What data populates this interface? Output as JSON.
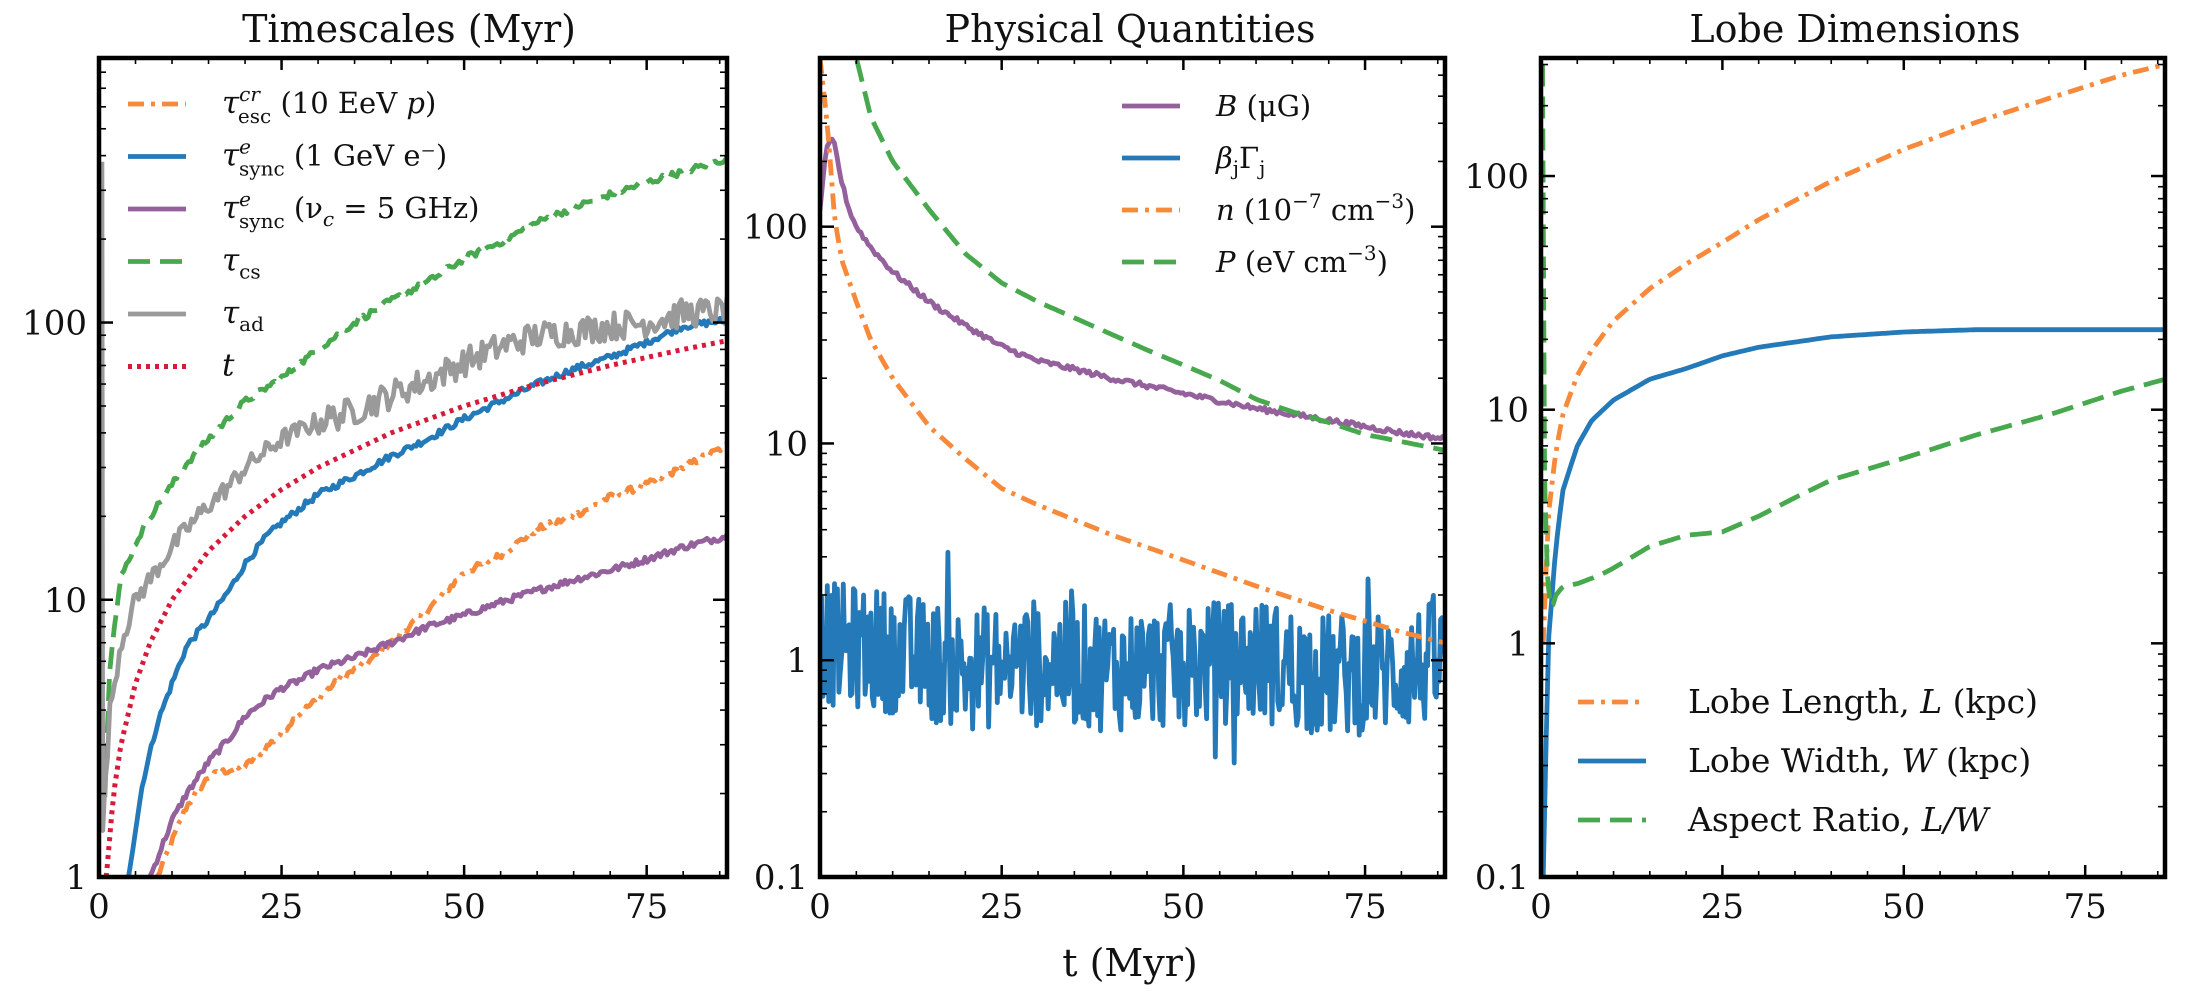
{
  "figure": {
    "xlabel": "t (Myr)"
  },
  "chart_data": [
    {
      "type": "line",
      "title": "Timescales (Myr)",
      "yscale": "log",
      "xlim": [
        0,
        86
      ],
      "ylim": [
        1,
        900
      ],
      "xticks": [
        0,
        25,
        50,
        75
      ],
      "xtick_labels": [
        "0",
        "25",
        "50",
        "75"
      ],
      "yticks": [
        1,
        10,
        100
      ],
      "ytick_labels": [
        "1",
        "10",
        "100"
      ],
      "legend_position": "top-left",
      "series": [
        {
          "name": "τ_esc^cr (10 EeV p)",
          "label_main": "τ",
          "label_sup": "cr",
          "label_sub": "esc",
          "label_rest": " (10 EeV ",
          "label_end_italic": "p",
          "label_end": ")",
          "color": "#f7893b",
          "dash": "dashdot",
          "noisy": true,
          "x": [
            8,
            10,
            12,
            15,
            17,
            20,
            22,
            25,
            27,
            30,
            33,
            37,
            40,
            45,
            50,
            55,
            60,
            65,
            70,
            75,
            80,
            86
          ],
          "y": [
            1.0,
            1.35,
            1.8,
            2.3,
            2.4,
            2.5,
            2.8,
            3.3,
            3.8,
            4.4,
            5.2,
            6.0,
            7.0,
            9.2,
            12.5,
            14.5,
            18.0,
            20.0,
            23.5,
            26.0,
            30.0,
            36.0
          ]
        },
        {
          "name": "τ_sync^e (1 GeV e⁻)",
          "label_main": "τ",
          "label_sup": "e",
          "label_sub": "sync",
          "label_rest": " (1 GeV e",
          "label_end_italic": "",
          "label_end": "⁻)",
          "color": "#2479b8",
          "dash": "solid",
          "noisy": true,
          "x": [
            4,
            6,
            8,
            10,
            12,
            15,
            18,
            20,
            23,
            25,
            30,
            35,
            40,
            45,
            50,
            55,
            60,
            65,
            70,
            75,
            80,
            86
          ],
          "y": [
            1.0,
            2.2,
            3.6,
            5.0,
            6.8,
            8.5,
            11.0,
            13.5,
            17.0,
            19.0,
            24.0,
            28.0,
            33.0,
            38.0,
            45.0,
            52.0,
            60.0,
            68.0,
            75.0,
            85.0,
            97.0,
            102.0
          ]
        },
        {
          "name": "τ_sync^e (ν_c = 5 GHz)",
          "label_main": "τ",
          "label_sup": "e",
          "label_sub": "sync",
          "label_rest": " (ν",
          "label_end_italic": "c",
          "label_end": " = 5 GHz)",
          "color": "#94619c",
          "dash": "solid",
          "noisy": true,
          "x": [
            7,
            10,
            12,
            15,
            18,
            20,
            23,
            25,
            28,
            30,
            35,
            40,
            45,
            50,
            55,
            60,
            65,
            70,
            75,
            80,
            86
          ],
          "y": [
            1.0,
            1.6,
            2.0,
            2.6,
            3.2,
            3.8,
            4.4,
            4.8,
            5.2,
            5.6,
            6.2,
            7.0,
            8.0,
            8.8,
            9.8,
            10.8,
            11.8,
            12.8,
            14.0,
            15.5,
            17.0
          ]
        },
        {
          "name": "τ_cs",
          "label_main": "τ",
          "label_sup": "",
          "label_sub": "cs",
          "label_rest": "",
          "label_end_italic": "",
          "label_end": "",
          "color": "#47a84d",
          "dash": "dashed",
          "noisy": true,
          "x": [
            0.8,
            1.5,
            3,
            5,
            7,
            10,
            12,
            15,
            18,
            20,
            25,
            30,
            35,
            40,
            45,
            50,
            55,
            60,
            65,
            70,
            75,
            80,
            86
          ],
          "y": [
            2.0,
            6.0,
            12.0,
            16.0,
            20.0,
            26.0,
            31.0,
            38.0,
            46.0,
            52.0,
            63.0,
            80.0,
            100.0,
            120.0,
            140.0,
            170.0,
            195.0,
            230.0,
            260.0,
            290.0,
            320.0,
            350.0,
            390.0
          ]
        },
        {
          "name": "τ_ad",
          "label_main": "τ",
          "label_sup": "",
          "label_sub": "ad",
          "label_rest": "",
          "label_end_italic": "",
          "label_end": "",
          "color": "#9a9a9a",
          "dash": "solid",
          "noisy": true,
          "x": [
            0.4,
            0.5,
            1.0,
            1.5,
            3,
            5,
            8,
            10,
            12,
            15,
            18,
            20,
            25,
            30,
            35,
            40,
            45,
            50,
            55,
            60,
            65,
            70,
            75,
            80,
            86
          ],
          "y": [
            380.0,
            1.5,
            2.5,
            4.0,
            7.0,
            10.0,
            13.0,
            15.5,
            18.0,
            22.0,
            26.0,
            30.0,
            38.0,
            44.0,
            48.0,
            55.0,
            62.0,
            72.0,
            82.0,
            90.0,
            93.0,
            97.0,
            100.0,
            108.0,
            110.0
          ]
        },
        {
          "name": "t",
          "label_main": "t",
          "label_sup": "",
          "label_sub": "",
          "label_rest": "",
          "label_end_italic": "",
          "label_end": "",
          "color": "#d61b3a",
          "dash": "dotted",
          "noisy": false,
          "x": [
            1,
            2,
            3,
            5,
            7,
            10,
            15,
            20,
            25,
            30,
            40,
            50,
            60,
            70,
            80,
            86
          ],
          "y": [
            1.0,
            2.0,
            3.0,
            5.0,
            7.0,
            10.0,
            15.0,
            20.0,
            25.0,
            30.0,
            40.0,
            50.0,
            60.0,
            70.0,
            80.0,
            86.0
          ]
        }
      ]
    },
    {
      "type": "line",
      "title": "Physical Quantities",
      "yscale": "log",
      "xlim": [
        0,
        86
      ],
      "ylim": [
        0.1,
        600
      ],
      "xticks": [
        0,
        25,
        50,
        75
      ],
      "xtick_labels": [
        "0",
        "25",
        "50",
        "75"
      ],
      "yticks": [
        0.1,
        1,
        10,
        100
      ],
      "ytick_labels": [
        "0.1",
        "1",
        "10",
        "100"
      ],
      "legend_position": "top-right",
      "series": [
        {
          "name": "B (μG)",
          "label_html": "B (μG)",
          "color": "#94619c",
          "dash": "solid",
          "noisy": true,
          "x": [
            0,
            0.5,
            1,
            1.5,
            2,
            3,
            4,
            5,
            7,
            10,
            15,
            20,
            25,
            30,
            35,
            40,
            50,
            60,
            70,
            80,
            86
          ],
          "y": [
            120.0,
            180.0,
            230.0,
            250.0,
            240.0,
            160.0,
            120.0,
            100.0,
            80.0,
            62.0,
            45.0,
            35.0,
            28.0,
            24.0,
            22.0,
            20.0,
            17.0,
            14.5,
            12.8,
            11.2,
            10.5
          ]
        },
        {
          "name": "β_jΓ_j",
          "label_html": "βjΓj",
          "color": "#2479b8",
          "dash": "solid",
          "noisy": "heavy",
          "x": [
            0,
            10,
            20,
            30,
            40,
            50,
            60,
            70,
            80,
            86
          ],
          "y": [
            1.2,
            1.1,
            0.9,
            1.0,
            0.9,
            0.95,
            1.0,
            0.85,
            0.9,
            1.0
          ]
        },
        {
          "name": "n (10⁻⁷ cm⁻³)",
          "label_html": "n (10⁻⁷ cm⁻³)",
          "color": "#f7893b",
          "dash": "dashdot",
          "noisy": false,
          "x": [
            0,
            1,
            2,
            3,
            5,
            7,
            10,
            15,
            20,
            25,
            30,
            40,
            50,
            60,
            70,
            80,
            86
          ],
          "y": [
            600.0,
            300.0,
            110.0,
            70.0,
            45.0,
            30.0,
            20.0,
            12.0,
            8.5,
            6.2,
            5.2,
            3.8,
            2.9,
            2.2,
            1.7,
            1.35,
            1.2
          ]
        },
        {
          "name": "P (eV cm⁻³)",
          "label_html": "P (eV cm⁻³)",
          "color": "#47a84d",
          "dash": "dashed",
          "noisy": false,
          "x": [
            0,
            5,
            7,
            10,
            15,
            20,
            25,
            30,
            35,
            40,
            45,
            50,
            55,
            60,
            65,
            70,
            75,
            80,
            86
          ],
          "y": [
            1500.0,
            600.0,
            320.0,
            200.0,
            120.0,
            75.0,
            55.0,
            45.0,
            38.0,
            32.0,
            27.0,
            23.0,
            19.5,
            16.0,
            14.0,
            12.5,
            11.0,
            10.2,
            9.3
          ]
        }
      ]
    },
    {
      "type": "line",
      "title": "Lobe Dimensions",
      "yscale": "log",
      "xlim": [
        0,
        86
      ],
      "ylim": [
        0.1,
        320
      ],
      "xticks": [
        0,
        25,
        50,
        75
      ],
      "xtick_labels": [
        "0",
        "25",
        "50",
        "75"
      ],
      "yticks": [
        0.1,
        1,
        10,
        100
      ],
      "ytick_labels": [
        "0.1",
        "1",
        "10",
        "100"
      ],
      "legend_position": "bottom-right",
      "series": [
        {
          "name": "Lobe Length, L (kpc)",
          "label_pre": "Lobe Length, ",
          "label_ital": "L",
          "label_post": " (kpc)",
          "color": "#f7893b",
          "dash": "dashdot",
          "noisy": false,
          "x": [
            0.3,
            1,
            2,
            3,
            5,
            7,
            10,
            15,
            20,
            25,
            30,
            40,
            50,
            60,
            70,
            80,
            86
          ],
          "y": [
            1.0,
            3.5,
            6.5,
            9.5,
            14.0,
            18.0,
            24.0,
            33.0,
            42.0,
            52.0,
            65.0,
            95.0,
            130.0,
            170.0,
            215.0,
            270.0,
            300.0
          ]
        },
        {
          "name": "Lobe Width, W (kpc)",
          "label_pre": "Lobe Width, ",
          "label_ital": "W",
          "label_post": " (kpc)",
          "color": "#2479b8",
          "dash": "solid",
          "noisy": false,
          "x": [
            0.3,
            1,
            2,
            3,
            5,
            7,
            10,
            15,
            20,
            25,
            30,
            40,
            50,
            60,
            70,
            80,
            86
          ],
          "y": [
            0.1,
            1.0,
            2.5,
            4.5,
            7.0,
            9.0,
            11.0,
            13.5,
            15.0,
            17.0,
            18.5,
            20.5,
            21.5,
            22.0,
            22.0,
            22.0,
            22.0
          ]
        },
        {
          "name": "Aspect Ratio, L/W",
          "label_pre": "Aspect Ratio, ",
          "label_ital": "L/W",
          "label_post": "",
          "color": "#47a84d",
          "dash": "dashed",
          "noisy": false,
          "x": [
            0.2,
            0.5,
            1,
            1.5,
            2,
            3,
            5,
            8,
            10,
            15,
            20,
            25,
            30,
            35,
            40,
            50,
            60,
            70,
            80,
            86
          ],
          "y": [
            300.0,
            5.0,
            1.5,
            1.4,
            1.6,
            1.75,
            1.8,
            1.95,
            2.1,
            2.6,
            2.9,
            3.0,
            3.5,
            4.2,
            5.0,
            6.2,
            7.8,
            9.5,
            12.0,
            13.5
          ]
        }
      ]
    }
  ]
}
